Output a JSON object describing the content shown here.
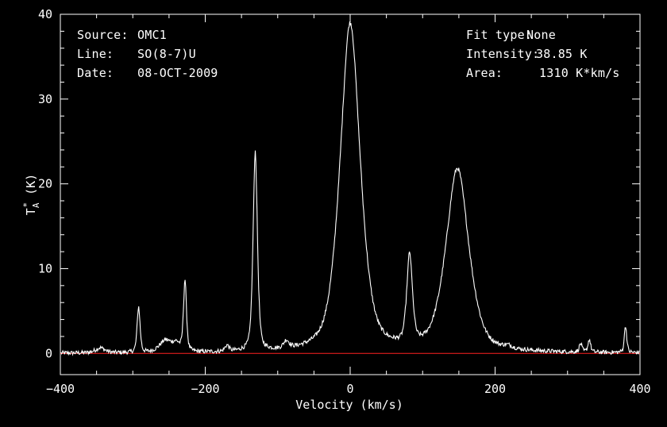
{
  "annotations": {
    "source_label": "Source:",
    "source_value": "OMC1",
    "line_label": "Line:",
    "line_value": "SO(8-7)U",
    "date_label": "Date:",
    "date_value": "08-OCT-2009",
    "fit_label": "Fit type:",
    "fit_value": "None",
    "intensity_label": "Intensity:",
    "intensity_value": "38.85 K",
    "area_label": "Area:",
    "area_value": "1310 K*km/s"
  },
  "chart_data": {
    "type": "line",
    "xlabel": "Velocity (km/s)",
    "ylabel": "T_A* (K)",
    "xlim": [
      -400,
      400
    ],
    "ylim": [
      -2.5,
      40
    ],
    "xticks": [
      -400,
      -200,
      0,
      200,
      400
    ],
    "yticks": [
      0,
      10,
      20,
      30,
      40
    ],
    "grid": false,
    "baseline": 0,
    "colors": {
      "background": "#000000",
      "axes": "#ffffff",
      "series": "#ffffff",
      "baseline": "#ff2020"
    },
    "series": [
      {
        "peaks": [
          {
            "center": -345,
            "amplitude": 0.6,
            "width": 7
          },
          {
            "center": -292,
            "amplitude": 5.4,
            "width": 2.2
          },
          {
            "center": -255,
            "amplitude": 1.4,
            "width": 9
          },
          {
            "center": -240,
            "amplitude": 0.9,
            "width": 6
          },
          {
            "center": -228,
            "amplitude": 8.4,
            "width": 2.2
          },
          {
            "center": -170,
            "amplitude": 0.7,
            "width": 3
          },
          {
            "center": -131,
            "amplitude": 23.5,
            "width": 3.2
          },
          {
            "center": -88,
            "amplitude": 0.9,
            "width": 4
          },
          {
            "center": 0,
            "amplitude": 38.85,
            "width": 15
          },
          {
            "center": 82,
            "amplitude": 10.5,
            "width": 4.2
          },
          {
            "center": 148,
            "amplitude": 21.6,
            "width": 17
          },
          {
            "center": 218,
            "amplitude": 0.3,
            "width": 6
          },
          {
            "center": 318,
            "amplitude": 1.0,
            "width": 2
          },
          {
            "center": 330,
            "amplitude": 1.5,
            "width": 2
          },
          {
            "center": 380,
            "amplitude": 3.2,
            "width": 1.8
          }
        ]
      }
    ]
  }
}
